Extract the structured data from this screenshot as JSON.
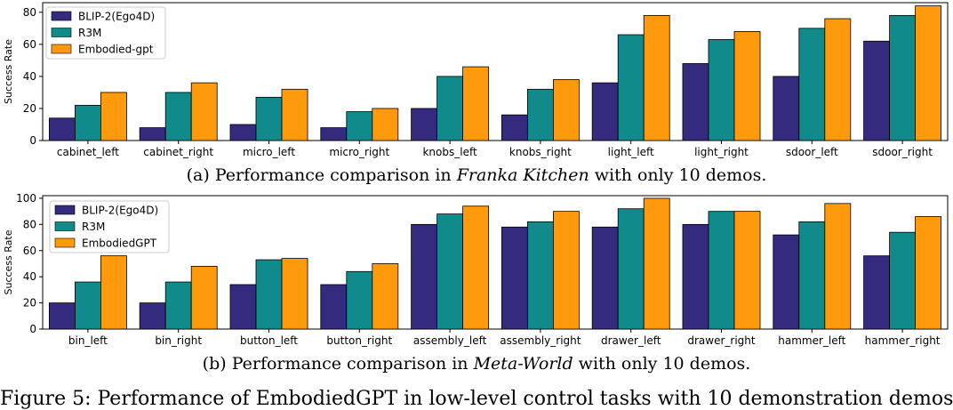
{
  "chart_data": [
    {
      "type": "bar",
      "ylabel": "Success Rate",
      "ylim": [
        0,
        86
      ],
      "yticks": [
        0,
        20,
        40,
        60,
        80
      ],
      "legend_placement": "top-left",
      "grid": false,
      "categories": [
        "cabinet_left",
        "cabinet_right",
        "micro_left",
        "micro_right",
        "knobs_left",
        "knobs_right",
        "light_left",
        "light_right",
        "sdoor_left",
        "sdoor_right"
      ],
      "series": [
        {
          "name": "BLIP-2(Ego4D)",
          "color": "#342a7e",
          "values": [
            14,
            8,
            10,
            8,
            20,
            16,
            36,
            48,
            40,
            62
          ]
        },
        {
          "name": "R3M",
          "color": "#108a8a",
          "values": [
            22,
            30,
            27,
            18,
            40,
            32,
            66,
            63,
            70,
            78
          ]
        },
        {
          "name": "Embodied-gpt",
          "color": "#ff9a0c",
          "values": [
            30,
            36,
            32,
            20,
            46,
            38,
            78,
            68,
            76,
            84
          ]
        }
      ],
      "caption": {
        "prefix": "(a) Performance comparison in ",
        "italic": "Franka Kitchen",
        "suffix": " with only 10 demos."
      }
    },
    {
      "type": "bar",
      "ylabel": "Success Rate",
      "ylim": [
        0,
        102
      ],
      "yticks": [
        0,
        20,
        40,
        60,
        80,
        100
      ],
      "legend_placement": "top-left",
      "grid": false,
      "categories": [
        "bin_left",
        "bin_right",
        "button_left",
        "button_right",
        "assembly_left",
        "assembly_right",
        "drawer_left",
        "drawer_right",
        "hammer_left",
        "hammer_right"
      ],
      "series": [
        {
          "name": "BLIP-2(Ego4D)",
          "color": "#342a7e",
          "values": [
            20,
            20,
            34,
            34,
            80,
            78,
            78,
            80,
            72,
            56
          ]
        },
        {
          "name": "R3M",
          "color": "#108a8a",
          "values": [
            36,
            36,
            53,
            44,
            88,
            82,
            92,
            90,
            82,
            74
          ]
        },
        {
          "name": "EmbodiedGPT",
          "color": "#ff9a0c",
          "values": [
            56,
            48,
            54,
            50,
            94,
            90,
            100,
            90,
            96,
            86
          ]
        }
      ],
      "caption": {
        "prefix": "(b) Performance comparison in ",
        "italic": "Meta-World",
        "suffix": " with only 10 demos."
      }
    }
  ],
  "figure_caption": "Figure 5: Performance of EmbodiedGPT in low-level control tasks with 10 demonstration demos"
}
